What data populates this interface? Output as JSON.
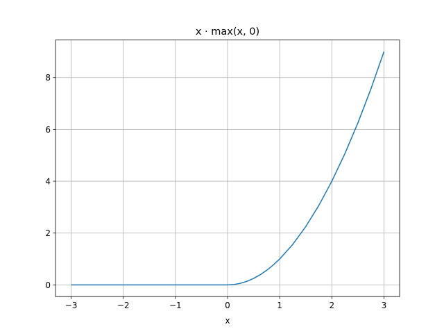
{
  "chart_data": {
    "type": "line",
    "title": "x · max(x, 0)",
    "xlabel": "x",
    "ylabel": "",
    "xlim": [
      -3.3,
      3.3
    ],
    "ylim": [
      -0.45,
      9.45
    ],
    "xticks": [
      -3,
      -2,
      -1,
      0,
      1,
      2,
      3
    ],
    "xtick_labels": [
      "−3",
      "−2",
      "−1",
      "0",
      "1",
      "2",
      "3"
    ],
    "yticks": [
      0,
      2,
      4,
      6,
      8
    ],
    "ytick_labels": [
      "0",
      "2",
      "4",
      "6",
      "8"
    ],
    "grid": true,
    "series": [
      {
        "color": "#1f77b4",
        "x": [
          -3,
          -2.75,
          -2.5,
          -2.25,
          -2,
          -1.75,
          -1.5,
          -1.25,
          -1,
          -0.75,
          -0.5,
          -0.25,
          0,
          0.125,
          0.25,
          0.375,
          0.5,
          0.625,
          0.75,
          0.875,
          1,
          1.25,
          1.5,
          1.75,
          2,
          2.25,
          2.5,
          2.75,
          3
        ],
        "y": [
          0,
          0,
          0,
          0,
          0,
          0,
          0,
          0,
          0,
          0,
          0,
          0,
          0,
          0.015625,
          0.0625,
          0.140625,
          0.25,
          0.390625,
          0.5625,
          0.765625,
          1,
          1.5625,
          2.25,
          3.0625,
          4,
          5.0625,
          6.25,
          7.5625,
          9
        ]
      }
    ]
  }
}
